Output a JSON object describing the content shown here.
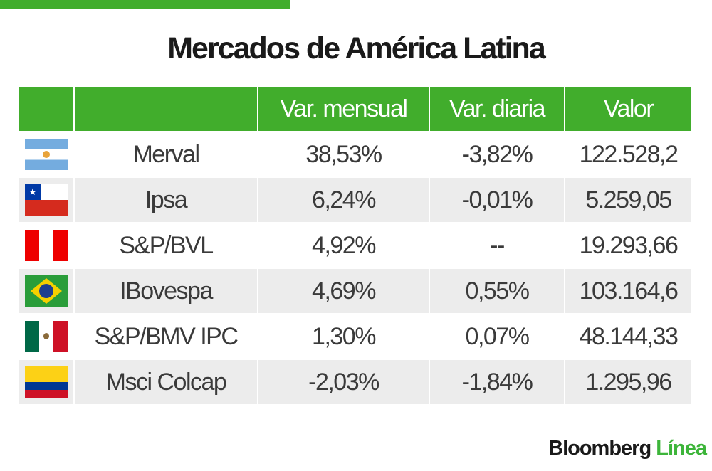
{
  "title": "Mercados de América Latina",
  "logo": {
    "part1": "Bloomberg",
    "part2": "Línea"
  },
  "colors": {
    "header": "#41ad2c",
    "alt_row": "#ececec"
  },
  "chart_data": {
    "type": "table",
    "title": "Mercados de América Latina",
    "columns": [
      "",
      "",
      "Var. mensual",
      "Var. diaria",
      "Valor"
    ],
    "rows": [
      {
        "flag": "ar",
        "index": "Merval",
        "mensual": "38,53%",
        "diaria": "-3,82%",
        "valor": "122.528,2"
      },
      {
        "flag": "cl",
        "index": "Ipsa",
        "mensual": "6,24%",
        "diaria": "-0,01%",
        "valor": "5.259,05"
      },
      {
        "flag": "pe",
        "index": "S&P/BVL",
        "mensual": "4,92%",
        "diaria": "--",
        "valor": "19.293,66"
      },
      {
        "flag": "br",
        "index": "IBovespa",
        "mensual": "4,69%",
        "diaria": "0,55%",
        "valor": "103.164,6"
      },
      {
        "flag": "mx",
        "index": "S&P/BMV IPC",
        "mensual": "1,30%",
        "diaria": "0,07%",
        "valor": "48.144,33"
      },
      {
        "flag": "co",
        "index": "Msci Colcap",
        "mensual": "-2,03%",
        "diaria": "-1,84%",
        "valor": "1.295,96"
      }
    ]
  }
}
